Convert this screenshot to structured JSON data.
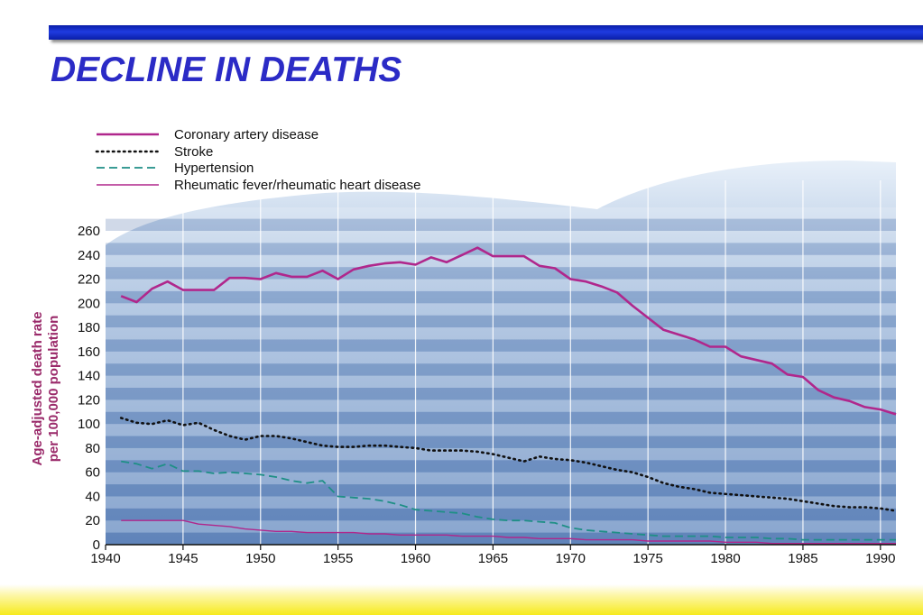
{
  "slide": {
    "title": "DECLINE IN DEATHS"
  },
  "colors": {
    "title": "#2b2bc6",
    "top_bar": "#1f3be0",
    "band": "#f6ea1c",
    "plot_light": "#c9d9ec",
    "plot_dark": "#7f9fcb",
    "ylabel": "#9a2a6a"
  },
  "chart_data": {
    "type": "line",
    "title": "",
    "xlabel": "",
    "ylabel_lines": [
      "Age-adjusted death rate",
      "per 100,000 population"
    ],
    "xlim": [
      1940,
      1991
    ],
    "ylim": [
      0,
      260
    ],
    "x_ticks": [
      1940,
      1945,
      1950,
      1955,
      1960,
      1965,
      1970,
      1975,
      1980,
      1985,
      1990
    ],
    "y_ticks": [
      0,
      20,
      40,
      60,
      80,
      100,
      120,
      140,
      160,
      180,
      200,
      220,
      240,
      260
    ],
    "grid": true,
    "legend_position": "top-left",
    "series": [
      {
        "name": "Coronary artery disease",
        "color": "#b0278c",
        "style": "solid-thick",
        "x": [
          1941,
          1942,
          1943,
          1944,
          1945,
          1946,
          1947,
          1948,
          1949,
          1950,
          1951,
          1952,
          1953,
          1954,
          1955,
          1956,
          1957,
          1958,
          1959,
          1960,
          1961,
          1962,
          1963,
          1964,
          1965,
          1966,
          1967,
          1968,
          1969,
          1970,
          1971,
          1972,
          1973,
          1974,
          1975,
          1976,
          1977,
          1978,
          1979,
          1980,
          1981,
          1982,
          1983,
          1984,
          1985,
          1986,
          1987,
          1988,
          1989,
          1990,
          1991
        ],
        "values": [
          206,
          201,
          212,
          218,
          211,
          211,
          211,
          221,
          221,
          220,
          225,
          222,
          222,
          227,
          220,
          228,
          231,
          233,
          234,
          232,
          238,
          234,
          240,
          246,
          239,
          239,
          239,
          231,
          229,
          220,
          218,
          214,
          209,
          198,
          188,
          178,
          174,
          170,
          164,
          164,
          156,
          153,
          150,
          141,
          139,
          128,
          122,
          119,
          114,
          112,
          108
        ]
      },
      {
        "name": "Stroke",
        "color": "#111111",
        "style": "dotted",
        "x": [
          1941,
          1942,
          1943,
          1944,
          1945,
          1946,
          1947,
          1948,
          1949,
          1950,
          1951,
          1952,
          1953,
          1954,
          1955,
          1956,
          1957,
          1958,
          1959,
          1960,
          1961,
          1962,
          1963,
          1964,
          1965,
          1966,
          1967,
          1968,
          1969,
          1970,
          1971,
          1972,
          1973,
          1974,
          1975,
          1976,
          1977,
          1978,
          1979,
          1980,
          1981,
          1982,
          1983,
          1984,
          1985,
          1986,
          1987,
          1988,
          1989,
          1990,
          1991
        ],
        "values": [
          105,
          101,
          100,
          103,
          99,
          101,
          95,
          90,
          87,
          90,
          90,
          88,
          85,
          82,
          81,
          81,
          82,
          82,
          81,
          80,
          78,
          78,
          78,
          77,
          75,
          72,
          69,
          73,
          71,
          70,
          68,
          65,
          62,
          60,
          56,
          51,
          48,
          46,
          43,
          42,
          41,
          40,
          39,
          38,
          36,
          34,
          32,
          31,
          31,
          30,
          28
        ]
      },
      {
        "name": "Hypertension",
        "color": "#1f8f86",
        "style": "dashed",
        "x": [
          1941,
          1942,
          1943,
          1944,
          1945,
          1946,
          1947,
          1948,
          1949,
          1950,
          1951,
          1952,
          1953,
          1954,
          1955,
          1956,
          1957,
          1958,
          1959,
          1960,
          1961,
          1962,
          1963,
          1964,
          1965,
          1966,
          1967,
          1968,
          1969,
          1970,
          1971,
          1972,
          1973,
          1974,
          1975,
          1976,
          1977,
          1978,
          1979,
          1980,
          1981,
          1982,
          1983,
          1984,
          1985,
          1986,
          1987,
          1988,
          1989,
          1990,
          1991
        ],
        "values": [
          69,
          67,
          63,
          67,
          61,
          61,
          59,
          60,
          59,
          58,
          56,
          53,
          51,
          53,
          40,
          39,
          38,
          36,
          33,
          29,
          28,
          27,
          26,
          23,
          21,
          20,
          20,
          19,
          18,
          14,
          12,
          11,
          10,
          9,
          8,
          7,
          7,
          7,
          7,
          6,
          6,
          6,
          5,
          5,
          4,
          4,
          4,
          4,
          4,
          4,
          4
        ]
      },
      {
        "name": "Rheumatic fever/rheumatic heart disease",
        "color": "#b0278c",
        "style": "solid-thin",
        "x": [
          1941,
          1942,
          1943,
          1944,
          1945,
          1946,
          1947,
          1948,
          1949,
          1950,
          1951,
          1952,
          1953,
          1954,
          1955,
          1956,
          1957,
          1958,
          1959,
          1960,
          1961,
          1962,
          1963,
          1964,
          1965,
          1966,
          1967,
          1968,
          1969,
          1970,
          1971,
          1972,
          1973,
          1974,
          1975,
          1976,
          1977,
          1978,
          1979,
          1980,
          1981,
          1982,
          1983,
          1984,
          1985,
          1986,
          1987,
          1988,
          1989,
          1990,
          1991
        ],
        "values": [
          20,
          20,
          20,
          20,
          20,
          17,
          16,
          15,
          13,
          12,
          11,
          11,
          10,
          10,
          10,
          10,
          9,
          9,
          8,
          8,
          8,
          8,
          7,
          7,
          7,
          6,
          6,
          5,
          5,
          5,
          4,
          4,
          4,
          4,
          3,
          3,
          3,
          3,
          3,
          2,
          2,
          2,
          1,
          1,
          1,
          1,
          1,
          1,
          1,
          1,
          1
        ]
      }
    ]
  }
}
